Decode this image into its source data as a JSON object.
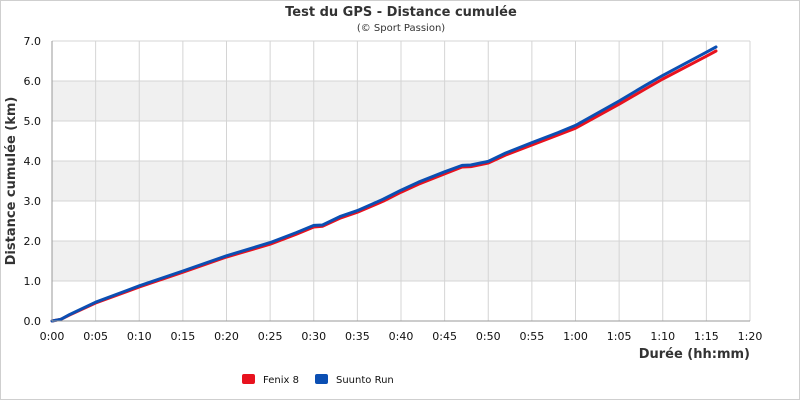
{
  "chart_data": {
    "type": "line",
    "title": "Test du GPS - Distance cumulée",
    "subtitle": "(© Sport Passion)",
    "xlabel": "Durée (hh:mm)",
    "ylabel": "Distance cumulée (km)",
    "xlim": [
      0,
      80
    ],
    "ylim": [
      0,
      7
    ],
    "x_ticks": [
      "0:00",
      "0:05",
      "0:10",
      "0:15",
      "0:20",
      "0:25",
      "0:30",
      "0:35",
      "0:40",
      "0:45",
      "0:50",
      "0:55",
      "1:00",
      "1:05",
      "1:10",
      "1:15",
      "1:20"
    ],
    "y_ticks": [
      "0.0",
      "1.0",
      "2.0",
      "3.0",
      "4.0",
      "5.0",
      "6.0",
      "7.0"
    ],
    "grid": true,
    "legend_position": "bottom-left",
    "series": [
      {
        "name": "Fenix 8",
        "color": "#e8121e",
        "x": [
          0,
          1,
          2,
          5,
          10,
          15,
          20,
          25,
          28,
          30,
          31,
          33,
          35,
          38,
          40,
          42,
          45,
          47,
          48,
          50,
          52,
          55,
          58,
          60,
          65,
          68,
          70,
          75,
          76.1
        ],
        "y": [
          0,
          0.04,
          0.15,
          0.45,
          0.85,
          1.22,
          1.6,
          1.92,
          2.17,
          2.35,
          2.37,
          2.57,
          2.72,
          3.0,
          3.22,
          3.42,
          3.68,
          3.85,
          3.86,
          3.95,
          4.15,
          4.4,
          4.65,
          4.82,
          5.42,
          5.8,
          6.05,
          6.62,
          6.75
        ]
      },
      {
        "name": "Suunto Run",
        "color": "#0b4fb3",
        "x": [
          0,
          1,
          2,
          5,
          10,
          15,
          20,
          25,
          28,
          30,
          31,
          33,
          35,
          38,
          40,
          42,
          45,
          47,
          48,
          50,
          52,
          55,
          58,
          60,
          65,
          68,
          70,
          75,
          76.1
        ],
        "y": [
          0,
          0.04,
          0.16,
          0.47,
          0.88,
          1.25,
          1.63,
          1.96,
          2.21,
          2.39,
          2.4,
          2.61,
          2.76,
          3.05,
          3.27,
          3.47,
          3.73,
          3.89,
          3.9,
          3.99,
          4.2,
          4.46,
          4.71,
          4.89,
          5.5,
          5.89,
          6.14,
          6.72,
          6.85
        ]
      }
    ]
  }
}
